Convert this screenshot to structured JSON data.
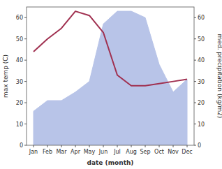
{
  "chart_data": {
    "type": "line",
    "x_label": "date (month)",
    "y_label": "max temp (C)",
    "y2_label": "med. precipitation (kg/m2)",
    "categories": [
      "Jan",
      "Feb",
      "Mar",
      "Apr",
      "May",
      "Jun",
      "Jul",
      "Aug",
      "Sep",
      "Oct",
      "Nov",
      "Dec"
    ],
    "series": [
      {
        "type": "area",
        "axis": "y2",
        "color": "#b8c4e8",
        "values": [
          16,
          21,
          21,
          25,
          30,
          57,
          63,
          63,
          60,
          38,
          25,
          31
        ]
      },
      {
        "type": "line",
        "color": "#a03050",
        "values": [
          44,
          50,
          55,
          63,
          61,
          53,
          33,
          28,
          28,
          29,
          30,
          31
        ]
      }
    ],
    "ylim": [
      0,
      65
    ],
    "yticks": [
      0,
      10,
      20,
      30,
      40,
      50,
      60
    ],
    "y2lim": [
      0,
      65
    ],
    "y2ticks": [
      0,
      10,
      20,
      30,
      40,
      50,
      60
    ],
    "grid": false
  }
}
